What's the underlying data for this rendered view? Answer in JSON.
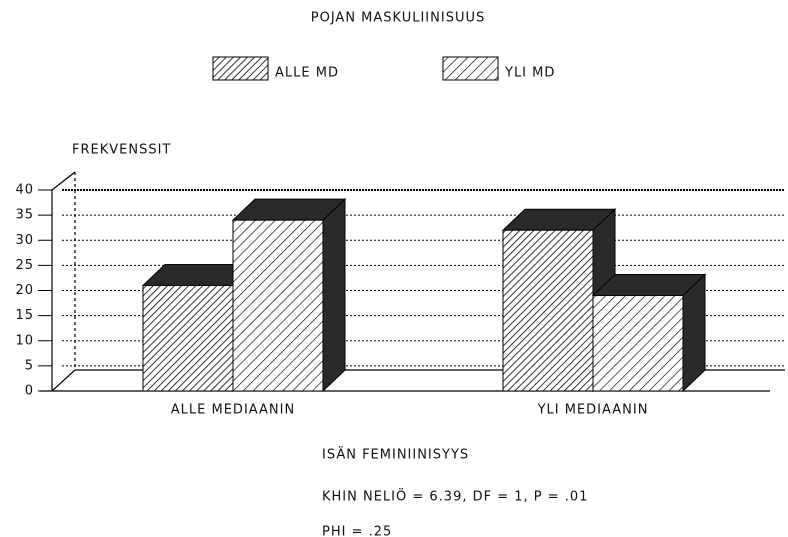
{
  "chart_data": {
    "type": "bar3d",
    "title": "POJAN MASKULIINISUUS",
    "y_label": "FREKVENSSIT",
    "x_label": "ISÄN FEMINIINISYYS",
    "annotations": [
      "KHIN NELIÖ = 6.39, DF = 1, P = .01",
      "PHI = .25"
    ],
    "categories": [
      "ALLE MEDIAANIN",
      "YLI MEDIAANIN"
    ],
    "series": [
      {
        "name": "ALLE MD",
        "color": "#000000",
        "values": [
          21,
          32
        ]
      },
      {
        "name": "YLI MD",
        "color": "#000000",
        "values": [
          34,
          19
        ]
      }
    ],
    "ylim": [
      0,
      40
    ],
    "yticks": [
      0,
      5,
      10,
      15,
      20,
      25,
      30,
      35,
      40
    ],
    "grid": true
  }
}
